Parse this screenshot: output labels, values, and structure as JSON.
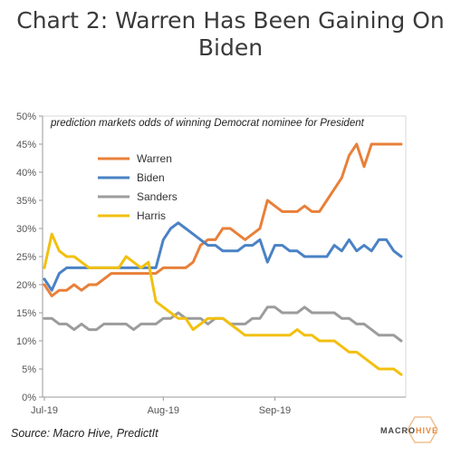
{
  "chart_data": {
    "type": "line",
    "title": "Chart 2: Warren Has Been Gaining On Biden",
    "subtitle": "prediction markets odds of winning Democrat nominee for President",
    "ylim": [
      0,
      50
    ],
    "ytick_labels": [
      "0%",
      "5%",
      "10%",
      "15%",
      "20%",
      "25%",
      "30%",
      "35%",
      "40%",
      "45%",
      "50%"
    ],
    "xtick_labels": [
      "Jul-19",
      "Aug-19",
      "Sep-19"
    ],
    "x": [
      "Jul-01",
      "Jul-03",
      "Jul-05",
      "Jul-07",
      "Jul-09",
      "Jul-11",
      "Jul-13",
      "Jul-15",
      "Jul-17",
      "Jul-19",
      "Jul-21",
      "Jul-23",
      "Jul-25",
      "Jul-27",
      "Jul-29",
      "Jul-31",
      "Aug-02",
      "Aug-04",
      "Aug-06",
      "Aug-08",
      "Aug-10",
      "Aug-12",
      "Aug-14",
      "Aug-16",
      "Aug-18",
      "Aug-20",
      "Aug-22",
      "Aug-24",
      "Aug-26",
      "Aug-28",
      "Aug-30",
      "Sep-01",
      "Sep-03",
      "Sep-05",
      "Sep-07",
      "Sep-09",
      "Sep-11",
      "Sep-13",
      "Sep-15",
      "Sep-17",
      "Sep-19",
      "Sep-21",
      "Sep-23",
      "Sep-25",
      "Sep-27",
      "Sep-29",
      "Oct-01",
      "Oct-03",
      "Oct-05"
    ],
    "series": [
      {
        "name": "Warren",
        "color": "#e8803a",
        "values": [
          20,
          18,
          19,
          19,
          20,
          19,
          20,
          20,
          21,
          22,
          22,
          22,
          22,
          22,
          22,
          22,
          23,
          23,
          23,
          23,
          24,
          27,
          28,
          28,
          30,
          30,
          29,
          28,
          29,
          30,
          35,
          34,
          33,
          33,
          33,
          34,
          33,
          33,
          35,
          37,
          39,
          43,
          45,
          41,
          45,
          45,
          45,
          45,
          45
        ]
      },
      {
        "name": "Biden",
        "color": "#4a82c5",
        "values": [
          21,
          19,
          22,
          23,
          23,
          23,
          23,
          23,
          23,
          23,
          23,
          23,
          23,
          23,
          23,
          23,
          28,
          30,
          31,
          30,
          29,
          28,
          27,
          27,
          26,
          26,
          26,
          27,
          27,
          28,
          24,
          27,
          27,
          26,
          26,
          25,
          25,
          25,
          25,
          27,
          26,
          28,
          26,
          27,
          26,
          28,
          28,
          26,
          25
        ]
      },
      {
        "name": "Sanders",
        "color": "#9c9c9c",
        "values": [
          14,
          14,
          13,
          13,
          12,
          13,
          12,
          12,
          13,
          13,
          13,
          13,
          12,
          13,
          13,
          13,
          14,
          14,
          15,
          14,
          14,
          14,
          13,
          14,
          14,
          13,
          13,
          13,
          14,
          14,
          16,
          16,
          15,
          15,
          15,
          16,
          15,
          15,
          15,
          15,
          14,
          14,
          13,
          13,
          12,
          11,
          11,
          11,
          10
        ]
      },
      {
        "name": "Harris",
        "color": "#f2c010",
        "values": [
          23,
          29,
          26,
          25,
          25,
          24,
          23,
          23,
          23,
          23,
          23,
          25,
          24,
          23,
          24,
          17,
          16,
          15,
          14,
          14,
          12,
          13,
          14,
          14,
          14,
          13,
          12,
          11,
          11,
          11,
          11,
          11,
          11,
          11,
          12,
          11,
          11,
          10,
          10,
          10,
          9,
          8,
          8,
          7,
          6,
          5,
          5,
          5,
          4
        ]
      }
    ],
    "grid": false,
    "legend": "upper-left inside plot"
  },
  "source": "Source: Macro Hive, PredictIt",
  "logo": {
    "text_1": "MACRO",
    "text_2": "HIVE",
    "accent": "#e8893a"
  }
}
